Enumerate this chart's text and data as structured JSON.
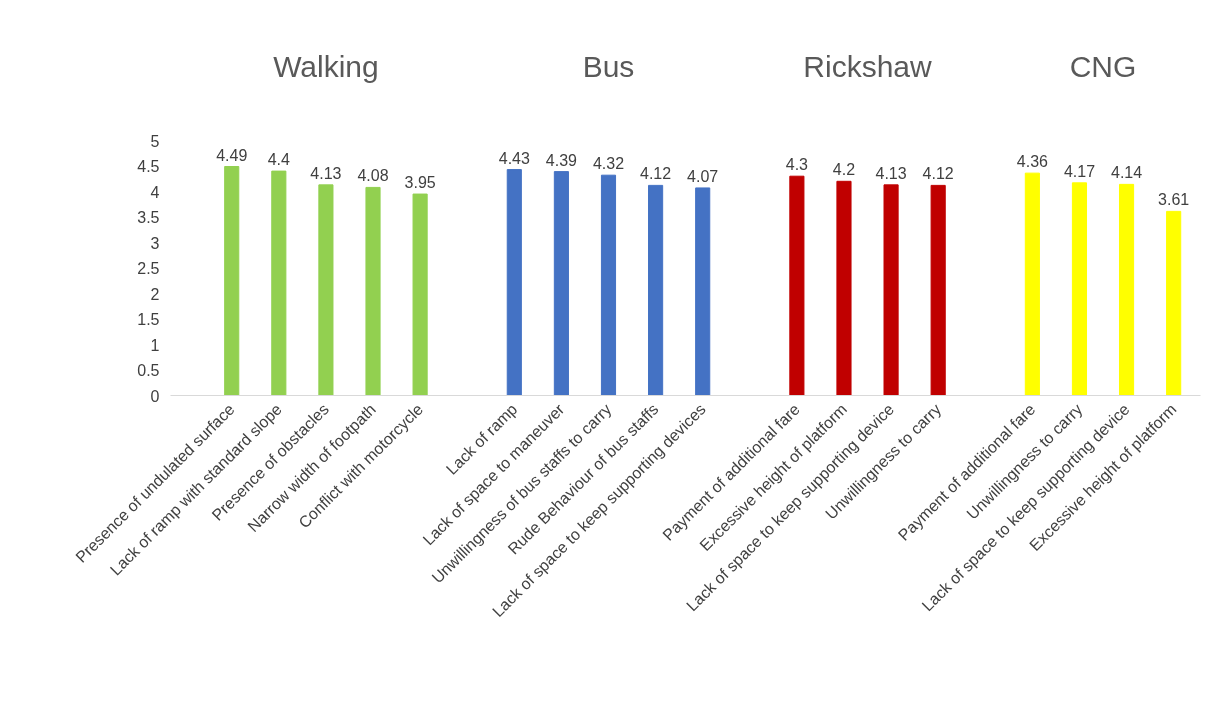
{
  "chart_data": {
    "type": "bar",
    "categories": [
      "Presence of undulated surface",
      "Lack of ramp with standard slope",
      "Presence of obstacles",
      "Narrow width of footpath",
      "Conflict with motorcycle",
      null,
      "Lack of ramp",
      "Lack of space to maneuver",
      "Unwillingness of bus staffs to carry",
      "Rude Behaviour of bus staffs",
      "Lack of space to keep supporting devices",
      null,
      "Payment of additional fare",
      "Excessive height of platform",
      "Lack of space to keep supporting device",
      "Unwillingness to carry",
      null,
      "Payment of additional fare",
      "Unwillingness to carry",
      "Lack of space to keep supporting device",
      "Excessive height of platform"
    ],
    "values": [
      4.49,
      4.4,
      4.13,
      4.08,
      3.95,
      null,
      4.43,
      4.39,
      4.32,
      4.12,
      4.07,
      null,
      4.3,
      4.2,
      4.13,
      4.12,
      null,
      4.36,
      4.17,
      4.14,
      3.61
    ],
    "colors": [
      "#92d050",
      "#92d050",
      "#92d050",
      "#92d050",
      "#92d050",
      null,
      "#4472c4",
      "#4472c4",
      "#4472c4",
      "#4472c4",
      "#4472c4",
      null,
      "#c00000",
      "#c00000",
      "#c00000",
      "#c00000",
      null,
      "#ffff00",
      "#ffff00",
      "#ffff00",
      "#ffff00"
    ],
    "annotations": [
      "Walking",
      "Bus",
      "Rickshaw",
      "CNG"
    ],
    "ylim": [
      0,
      5
    ],
    "yticks": [
      0,
      0.5,
      1,
      1.5,
      2,
      2.5,
      3,
      3.5,
      4,
      4.5,
      5
    ],
    "data_labels": true,
    "grid": false
  }
}
